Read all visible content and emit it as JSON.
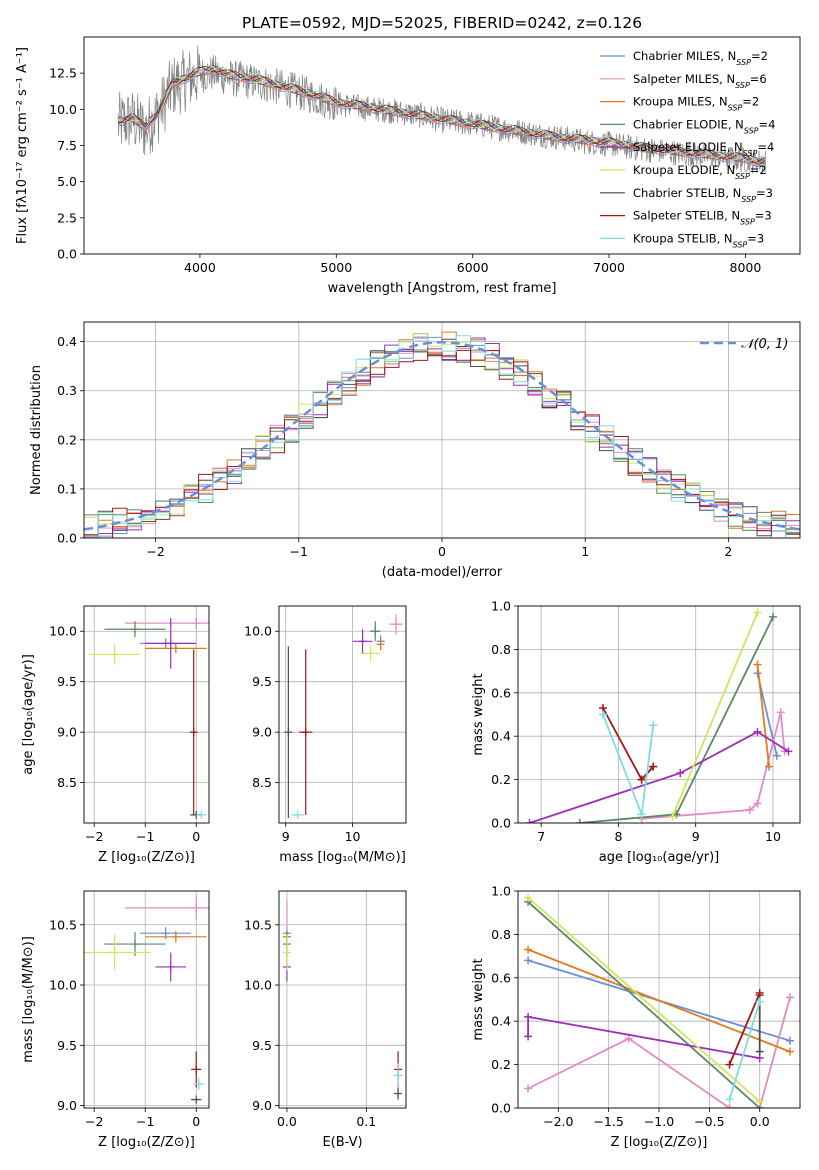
{
  "figure": {
    "title": "PLATE=0592, MJD=52025, FIBERID=0242, z=0.126"
  },
  "series_styles": [
    {
      "name": "Chabrier MILES",
      "nssp": "2",
      "color": "#6a8fd9"
    },
    {
      "name": "Salpeter MILES",
      "nssp": "6",
      "color": "#e38bc4"
    },
    {
      "name": "Kroupa MILES",
      "nssp": "2",
      "color": "#e07b1f"
    },
    {
      "name": "Chabrier ELODIE",
      "nssp": "4",
      "color": "#5c8a65"
    },
    {
      "name": "Salpeter ELODIE",
      "nssp": "4",
      "color": "#9b30b8"
    },
    {
      "name": "Kroupa ELODIE",
      "nssp": "2",
      "color": "#cde85a"
    },
    {
      "name": "Chabrier STELIB",
      "nssp": "3",
      "color": "#4d4d4d"
    },
    {
      "name": "Salpeter STELIB",
      "nssp": "3",
      "color": "#a01818"
    },
    {
      "name": "Kroupa STELIB",
      "nssp": "3",
      "color": "#7fdcdf"
    }
  ],
  "chart_data": [
    {
      "id": "spectrum",
      "type": "line",
      "xlabel": "wavelength [Angstrom, rest frame]",
      "ylabel": "Flux [fλ10⁻¹⁷ erg cm⁻² s⁻¹ A⁻¹]",
      "xlim": [
        3150,
        8400
      ],
      "ylim": [
        0,
        15
      ],
      "xticks": [
        4000,
        5000,
        6000,
        7000,
        8000
      ],
      "yticks": [
        0.0,
        2.5,
        5.0,
        7.5,
        10.0,
        12.5
      ],
      "legend_position": "top-right",
      "data_color": "#808080",
      "data_x": [
        3400,
        3500,
        3600,
        3700,
        3800,
        3900,
        4000,
        4100,
        4200,
        4400,
        4600,
        4800,
        5000,
        5200,
        5400,
        5600,
        5800,
        6000,
        6200,
        6400,
        6600,
        6800,
        7000,
        7200,
        7400,
        7600,
        7800,
        8000,
        8100
      ],
      "data_y": [
        9.0,
        9.3,
        8.6,
        9.8,
        11.6,
        12.0,
        12.4,
        12.5,
        12.2,
        11.9,
        11.5,
        11.0,
        10.4,
        10.1,
        9.9,
        9.6,
        9.2,
        9.0,
        8.7,
        8.4,
        8.1,
        7.8,
        7.6,
        7.3,
        7.1,
        6.9,
        6.7,
        6.5,
        6.4
      ],
      "model_y": [
        9.2,
        9.4,
        8.8,
        9.9,
        11.8,
        12.2,
        12.6,
        12.8,
        12.4,
        12.1,
        11.6,
        11.1,
        10.5,
        10.2,
        9.9,
        9.6,
        9.3,
        9.0,
        8.7,
        8.4,
        8.1,
        7.9,
        7.7,
        7.4,
        7.2,
        7.0,
        6.8,
        6.6,
        6.4
      ]
    },
    {
      "id": "residuals",
      "type": "line",
      "xlabel": "(data-model)/error",
      "ylabel": "Normed distribution",
      "xlim": [
        -2.5,
        2.5
      ],
      "ylim": [
        0,
        0.44
      ],
      "xticks": [
        -2,
        -1,
        0,
        1,
        2
      ],
      "yticks": [
        0.0,
        0.1,
        0.2,
        0.3,
        0.4
      ],
      "legend_label": "𝒩(0, 1)",
      "legend_position": "top-right",
      "gaussian": {
        "mean": 0,
        "sigma": 1,
        "color": "#6a8fd9"
      },
      "bin_width": 0.1,
      "bins_start": -2.5,
      "bins_count": 50
    },
    {
      "id": "age_vs_Z",
      "type": "scatter",
      "xlabel": "Z [log₁₀(Z/Z⊙)]",
      "ylabel": "age [log₁₀(age/yr)]",
      "xlim": [
        -2.2,
        0.25
      ],
      "ylim": [
        8.1,
        10.25
      ],
      "xticks": [
        -2,
        -1,
        0
      ],
      "yticks": [
        8.5,
        9.0,
        9.5,
        10.0
      ],
      "points": [
        {
          "series": 0,
          "x": -0.6,
          "y": 9.88,
          "xerr": 0.5,
          "yerr": 0.05
        },
        {
          "series": 1,
          "x": 0.0,
          "y": 10.08,
          "xerr": 1.4,
          "yerr": 0.06
        },
        {
          "series": 2,
          "x": -0.4,
          "y": 9.83,
          "xerr": 0.6,
          "yerr": 0.05
        },
        {
          "series": 3,
          "x": -1.2,
          "y": 10.02,
          "xerr": 0.6,
          "yerr": 0.08
        },
        {
          "series": 4,
          "x": -0.5,
          "y": 9.88,
          "xerr": 0.5,
          "yerr": 0.25
        },
        {
          "series": 5,
          "x": -1.6,
          "y": 9.77,
          "xerr": 0.5,
          "yerr": 0.1
        },
        {
          "series": 6,
          "x": 0.0,
          "y": 8.18,
          "xerr": 0.12,
          "yerr": 0.0
        },
        {
          "series": 7,
          "x": -0.05,
          "y": 9.0,
          "xerr": 0.05,
          "yerr": 0.82
        },
        {
          "series": 8,
          "x": 0.1,
          "y": 8.18,
          "xerr": 0.1,
          "yerr": 0.0
        }
      ]
    },
    {
      "id": "age_vs_mass",
      "type": "scatter",
      "xlabel": "mass [log₁₀(M/M⊙)]",
      "ylabel": "",
      "xlim": [
        8.9,
        10.8
      ],
      "ylim": [
        8.1,
        10.25
      ],
      "xticks": [
        9,
        10
      ],
      "yticks": [
        8.5,
        9.0,
        9.5,
        10.0
      ],
      "points": [
        {
          "series": 0,
          "x": 10.42,
          "y": 9.9,
          "xerr": 0.05,
          "yerr": 0.06
        },
        {
          "series": 1,
          "x": 10.65,
          "y": 10.07,
          "xerr": 0.1,
          "yerr": 0.1
        },
        {
          "series": 2,
          "x": 10.42,
          "y": 9.87,
          "xerr": 0.05,
          "yerr": 0.06
        },
        {
          "series": 3,
          "x": 10.34,
          "y": 10.0,
          "xerr": 0.08,
          "yerr": 0.1
        },
        {
          "series": 4,
          "x": 10.15,
          "y": 9.9,
          "xerr": 0.15,
          "yerr": 0.12
        },
        {
          "series": 5,
          "x": 10.27,
          "y": 9.78,
          "xerr": 0.15,
          "yerr": 0.08
        },
        {
          "series": 6,
          "x": 9.04,
          "y": 9.0,
          "xerr": 0.0,
          "yerr": 0.85
        },
        {
          "series": 7,
          "x": 9.3,
          "y": 9.0,
          "xerr": 0.1,
          "yerr": 0.82
        },
        {
          "series": 8,
          "x": 9.18,
          "y": 8.18,
          "xerr": 0.1,
          "yerr": 0.0
        }
      ]
    },
    {
      "id": "mass_weight_vs_age",
      "type": "line",
      "xlabel": "age [log₁₀(age/yr)]",
      "ylabel": "mass weight",
      "xlim": [
        6.7,
        10.35
      ],
      "ylim": [
        0,
        1.0
      ],
      "xticks": [
        7,
        8,
        9,
        10
      ],
      "yticks": [
        0.0,
        0.2,
        0.4,
        0.6,
        0.8,
        1.0
      ],
      "series": [
        {
          "series": 0,
          "x": [
            9.8,
            10.05
          ],
          "y": [
            0.69,
            0.31
          ]
        },
        {
          "series": 1,
          "x": [
            8.3,
            9.7,
            9.8,
            10.1,
            10.15
          ],
          "y": [
            0.02,
            0.06,
            0.09,
            0.51,
            0.33
          ]
        },
        {
          "series": 2,
          "x": [
            9.8,
            9.95
          ],
          "y": [
            0.73,
            0.26
          ]
        },
        {
          "series": 3,
          "x": [
            7.5,
            8.75,
            10.0
          ],
          "y": [
            0.0,
            0.04,
            0.95
          ]
        },
        {
          "series": 4,
          "x": [
            6.85,
            8.8,
            9.8,
            10.2
          ],
          "y": [
            0.0,
            0.23,
            0.42,
            0.33
          ]
        },
        {
          "series": 5,
          "x": [
            8.7,
            9.8
          ],
          "y": [
            0.03,
            0.97
          ]
        },
        {
          "series": 6,
          "x": [
            8.3,
            8.45
          ],
          "y": [
            0.2,
            0.26
          ]
        },
        {
          "series": 7,
          "x": [
            7.8,
            8.3,
            8.45
          ],
          "y": [
            0.53,
            0.2,
            0.26
          ]
        },
        {
          "series": 8,
          "x": [
            7.8,
            8.3,
            8.45
          ],
          "y": [
            0.5,
            0.04,
            0.45
          ]
        }
      ]
    },
    {
      "id": "mass_vs_Z",
      "type": "scatter",
      "xlabel": "Z [log₁₀(Z/Z⊙)]",
      "ylabel": "mass [log₁₀(M/M⊙)]",
      "xlim": [
        -2.2,
        0.25
      ],
      "ylim": [
        8.98,
        10.78
      ],
      "xticks": [
        -2,
        -1,
        0
      ],
      "yticks": [
        9.0,
        9.5,
        10.0,
        10.5
      ],
      "points": [
        {
          "series": 0,
          "x": -0.6,
          "y": 10.43,
          "xerr": 0.5,
          "yerr": 0.05
        },
        {
          "series": 1,
          "x": 0.0,
          "y": 10.64,
          "xerr": 1.4,
          "yerr": 0.1
        },
        {
          "series": 2,
          "x": -0.4,
          "y": 10.4,
          "xerr": 0.6,
          "yerr": 0.05
        },
        {
          "series": 3,
          "x": -1.2,
          "y": 10.34,
          "xerr": 0.6,
          "yerr": 0.1
        },
        {
          "series": 4,
          "x": -0.5,
          "y": 10.15,
          "xerr": 0.3,
          "yerr": 0.12
        },
        {
          "series": 5,
          "x": -1.6,
          "y": 10.27,
          "xerr": 0.7,
          "yerr": 0.15
        },
        {
          "series": 6,
          "x": 0.0,
          "y": 9.05,
          "xerr": 0.1,
          "yerr": 0.0
        },
        {
          "series": 7,
          "x": 0.0,
          "y": 9.3,
          "xerr": 0.1,
          "yerr": 0.15
        },
        {
          "series": 8,
          "x": 0.05,
          "y": 9.18,
          "xerr": 0.1,
          "yerr": 0.05
        }
      ]
    },
    {
      "id": "mass_vs_ebv",
      "type": "scatter",
      "xlabel": "E(B-V)",
      "ylabel": "",
      "xlim": [
        -0.01,
        0.15
      ],
      "ylim": [
        8.98,
        10.78
      ],
      "xticks": [
        0.0,
        0.1
      ],
      "yticks": [
        9.0,
        9.5,
        10.0,
        10.5
      ],
      "points": [
        {
          "series": 0,
          "x": 0.0,
          "y": 10.43,
          "xerr": 0.0,
          "yerr": 0.05
        },
        {
          "series": 1,
          "x": 0.0,
          "y": 10.4,
          "xerr": 0.0,
          "yerr": 0.3
        },
        {
          "series": 2,
          "x": 0.0,
          "y": 10.4,
          "xerr": 0.0,
          "yerr": 0.05
        },
        {
          "series": 3,
          "x": 0.0,
          "y": 10.34,
          "xerr": 0.0,
          "yerr": 0.1
        },
        {
          "series": 4,
          "x": 0.0,
          "y": 10.15,
          "xerr": 0.0,
          "yerr": 0.12
        },
        {
          "series": 5,
          "x": 0.0,
          "y": 10.27,
          "xerr": 0.0,
          "yerr": 0.15
        },
        {
          "series": 6,
          "x": 0.14,
          "y": 9.1,
          "xerr": 0.0,
          "yerr": 0.05
        },
        {
          "series": 7,
          "x": 0.14,
          "y": 9.3,
          "xerr": 0.0,
          "yerr": 0.15
        },
        {
          "series": 8,
          "x": 0.14,
          "y": 9.25,
          "xerr": 0.0,
          "yerr": 0.1
        }
      ]
    },
    {
      "id": "mass_weight_vs_Z",
      "type": "line",
      "xlabel": "Z [log₁₀(Z/Z⊙)]",
      "ylabel": "mass weight",
      "xlim": [
        -2.4,
        0.4
      ],
      "ylim": [
        0,
        1.0
      ],
      "xticks": [
        -2.0,
        -1.5,
        -1.0,
        -0.5,
        0.0
      ],
      "yticks": [
        0.0,
        0.2,
        0.4,
        0.6,
        0.8,
        1.0
      ],
      "series": [
        {
          "series": 0,
          "x": [
            -2.3,
            0.3
          ],
          "y": [
            0.68,
            0.31
          ]
        },
        {
          "series": 1,
          "x": [
            -2.3,
            -1.3,
            -0.3,
            0.0,
            0.3
          ],
          "y": [
            0.09,
            0.32,
            0.0,
            0.0,
            0.51
          ]
        },
        {
          "series": 2,
          "x": [
            -2.3,
            0.3
          ],
          "y": [
            0.73,
            0.26
          ]
        },
        {
          "series": 3,
          "x": [
            -2.3,
            0.0
          ],
          "y": [
            0.95,
            0.0
          ]
        },
        {
          "series": 4,
          "x": [
            -2.3,
            -2.3,
            0.0
          ],
          "y": [
            0.33,
            0.42,
            0.23
          ]
        },
        {
          "series": 5,
          "x": [
            -2.3,
            0.0
          ],
          "y": [
            0.97,
            0.03
          ]
        },
        {
          "series": 6,
          "x": [
            0.0,
            0.0
          ],
          "y": [
            0.26,
            0.52
          ]
        },
        {
          "series": 7,
          "x": [
            -0.3,
            0.0
          ],
          "y": [
            0.2,
            0.53
          ]
        },
        {
          "series": 8,
          "x": [
            -0.3,
            0.0
          ],
          "y": [
            0.04,
            0.49
          ]
        }
      ]
    }
  ]
}
